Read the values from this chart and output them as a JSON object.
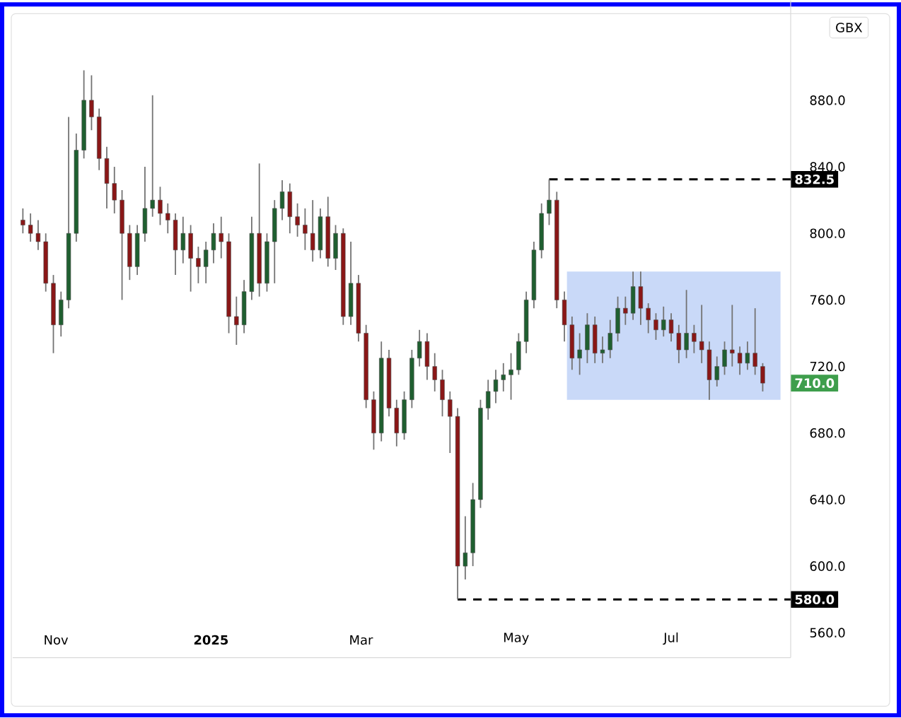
{
  "chart_data": {
    "type": "candlestick",
    "x": [
      "2024-10-19",
      "2024-10-22",
      "2024-10-25",
      "2024-10-28",
      "2024-10-31",
      "2024-11-03",
      "2024-11-06",
      "2024-11-09",
      "2024-11-12",
      "2024-11-15",
      "2024-11-18",
      "2024-11-21",
      "2024-11-24",
      "2024-11-27",
      "2024-11-30",
      "2024-12-03",
      "2024-12-06",
      "2024-12-09",
      "2024-12-12",
      "2024-12-15",
      "2024-12-18",
      "2024-12-21",
      "2024-12-24",
      "2024-12-27",
      "2024-12-30",
      "2025-01-02",
      "2025-01-05",
      "2025-01-08",
      "2025-01-11",
      "2025-01-14",
      "2025-01-17",
      "2025-01-20",
      "2025-01-23",
      "2025-01-26",
      "2025-01-29",
      "2025-02-01",
      "2025-02-04",
      "2025-02-07",
      "2025-02-10",
      "2025-02-13",
      "2025-02-16",
      "2025-02-19",
      "2025-02-22",
      "2025-02-25",
      "2025-02-28",
      "2025-03-03",
      "2025-03-06",
      "2025-03-09",
      "2025-03-12",
      "2025-03-15",
      "2025-03-18",
      "2025-03-21",
      "2025-03-24",
      "2025-03-27",
      "2025-03-30",
      "2025-04-02",
      "2025-04-05",
      "2025-04-08",
      "2025-04-11",
      "2025-04-14",
      "2025-04-17",
      "2025-04-20",
      "2025-04-23",
      "2025-04-26",
      "2025-04-29",
      "2025-05-02",
      "2025-05-05",
      "2025-05-08",
      "2025-05-11",
      "2025-05-14",
      "2025-05-17",
      "2025-05-20",
      "2025-05-23",
      "2025-05-26",
      "2025-05-29",
      "2025-06-01",
      "2025-06-04",
      "2025-06-07",
      "2025-06-10",
      "2025-06-13",
      "2025-06-16",
      "2025-06-19",
      "2025-06-22",
      "2025-06-25",
      "2025-06-28",
      "2025-07-01",
      "2025-07-04",
      "2025-07-07",
      "2025-07-10",
      "2025-07-13",
      "2025-07-16",
      "2025-07-19",
      "2025-07-22",
      "2025-07-25",
      "2025-07-28",
      "2025-07-31",
      "2025-08-03",
      "2025-08-06"
    ],
    "ohlc": [
      [
        808,
        815,
        800,
        805
      ],
      [
        805,
        812,
        795,
        800
      ],
      [
        800,
        808,
        790,
        795
      ],
      [
        795,
        800,
        765,
        770
      ],
      [
        770,
        775,
        728,
        745
      ],
      [
        745,
        765,
        738,
        760
      ],
      [
        760,
        870,
        755,
        800
      ],
      [
        800,
        860,
        795,
        850
      ],
      [
        850,
        898,
        845,
        880
      ],
      [
        880,
        895,
        862,
        870
      ],
      [
        870,
        875,
        838,
        845
      ],
      [
        845,
        852,
        815,
        830
      ],
      [
        830,
        840,
        812,
        820
      ],
      [
        820,
        826,
        760,
        800
      ],
      [
        800,
        805,
        772,
        780
      ],
      [
        780,
        805,
        775,
        800
      ],
      [
        800,
        840,
        795,
        815
      ],
      [
        815,
        883,
        810,
        820
      ],
      [
        820,
        828,
        805,
        812
      ],
      [
        812,
        818,
        800,
        808
      ],
      [
        808,
        812,
        775,
        790
      ],
      [
        790,
        810,
        782,
        800
      ],
      [
        800,
        805,
        765,
        785
      ],
      [
        785,
        792,
        770,
        780
      ],
      [
        780,
        795,
        770,
        790
      ],
      [
        790,
        806,
        782,
        800
      ],
      [
        800,
        810,
        785,
        795
      ],
      [
        795,
        800,
        740,
        750
      ],
      [
        750,
        762,
        733,
        745
      ],
      [
        745,
        772,
        740,
        765
      ],
      [
        765,
        810,
        760,
        800
      ],
      [
        800,
        842,
        762,
        770
      ],
      [
        770,
        800,
        765,
        795
      ],
      [
        795,
        820,
        770,
        815
      ],
      [
        815,
        832,
        808,
        825
      ],
      [
        825,
        830,
        800,
        810
      ],
      [
        810,
        818,
        798,
        805
      ],
      [
        805,
        815,
        790,
        800
      ],
      [
        800,
        820,
        783,
        790
      ],
      [
        790,
        815,
        785,
        810
      ],
      [
        810,
        822,
        780,
        785
      ],
      [
        785,
        805,
        778,
        800
      ],
      [
        800,
        803,
        745,
        750
      ],
      [
        750,
        795,
        745,
        770
      ],
      [
        770,
        775,
        735,
        740
      ],
      [
        740,
        745,
        695,
        700
      ],
      [
        700,
        705,
        670,
        680
      ],
      [
        680,
        735,
        675,
        725
      ],
      [
        725,
        730,
        690,
        695
      ],
      [
        695,
        700,
        672,
        680
      ],
      [
        680,
        705,
        676,
        700
      ],
      [
        700,
        730,
        695,
        725
      ],
      [
        725,
        742,
        720,
        735
      ],
      [
        735,
        740,
        712,
        720
      ],
      [
        720,
        728,
        705,
        712
      ],
      [
        712,
        718,
        690,
        700
      ],
      [
        700,
        705,
        668,
        690
      ],
      [
        690,
        695,
        580,
        600
      ],
      [
        600,
        630,
        592,
        608
      ],
      [
        608,
        650,
        600,
        640
      ],
      [
        640,
        700,
        635,
        695
      ],
      [
        695,
        712,
        688,
        705
      ],
      [
        705,
        718,
        698,
        712
      ],
      [
        712,
        722,
        705,
        715
      ],
      [
        715,
        728,
        700,
        718
      ],
      [
        718,
        740,
        715,
        735
      ],
      [
        735,
        765,
        728,
        760
      ],
      [
        760,
        795,
        755,
        790
      ],
      [
        790,
        818,
        785,
        812
      ],
      [
        812,
        832.5,
        805,
        820
      ],
      [
        820,
        825,
        755,
        760
      ],
      [
        760,
        765,
        735,
        745
      ],
      [
        745,
        750,
        718,
        725
      ],
      [
        725,
        740,
        715,
        730
      ],
      [
        730,
        752,
        722,
        745
      ],
      [
        745,
        750,
        722,
        728
      ],
      [
        728,
        738,
        722,
        730
      ],
      [
        730,
        748,
        725,
        740
      ],
      [
        740,
        762,
        735,
        755
      ],
      [
        755,
        762,
        745,
        752
      ],
      [
        752,
        777,
        748,
        768
      ],
      [
        768,
        777,
        745,
        755
      ],
      [
        755,
        758,
        740,
        748
      ],
      [
        748,
        752,
        736,
        742
      ],
      [
        742,
        756,
        738,
        748
      ],
      [
        748,
        752,
        735,
        740
      ],
      [
        740,
        745,
        722,
        730
      ],
      [
        730,
        766,
        725,
        740
      ],
      [
        740,
        745,
        728,
        735
      ],
      [
        735,
        757,
        722,
        730
      ],
      [
        730,
        735,
        700,
        712
      ],
      [
        712,
        726,
        708,
        720
      ],
      [
        720,
        735,
        715,
        730
      ],
      [
        730,
        757,
        720,
        728
      ],
      [
        728,
        732,
        715,
        722
      ],
      [
        722,
        735,
        718,
        728
      ],
      [
        728,
        755,
        715,
        720
      ],
      [
        720,
        722,
        705,
        710
      ]
    ],
    "colors": [
      "#8a1717",
      "#8a1717",
      "#8a1717",
      "#8a1717",
      "#8a1717",
      "#1f5f30",
      "#1f5f30",
      "#1f5f30",
      "#1f5f30",
      "#8a1717",
      "#8a1717",
      "#8a1717",
      "#8a1717",
      "#8a1717",
      "#8a1717",
      "#1f5f30",
      "#1f5f30",
      "#1f5f30",
      "#8a1717",
      "#8a1717",
      "#8a1717",
      "#1f5f30",
      "#8a1717",
      "#8a1717",
      "#1f5f30",
      "#1f5f30",
      "#8a1717",
      "#8a1717",
      "#8a1717",
      "#1f5f30",
      "#1f5f30",
      "#8a1717",
      "#1f5f30",
      "#1f5f30",
      "#1f5f30",
      "#8a1717",
      "#8a1717",
      "#8a1717",
      "#8a1717",
      "#1f5f30",
      "#8a1717",
      "#1f5f30",
      "#8a1717",
      "#1f5f30",
      "#8a1717",
      "#8a1717",
      "#8a1717",
      "#1f5f30",
      "#8a1717",
      "#8a1717",
      "#1f5f30",
      "#1f5f30",
      "#1f5f30",
      "#8a1717",
      "#8a1717",
      "#8a1717",
      "#8a1717",
      "#8a1717",
      "#1f5f30",
      "#1f5f30",
      "#1f5f30",
      "#1f5f30",
      "#1f5f30",
      "#1f5f30",
      "#1f5f30",
      "#1f5f30",
      "#1f5f30",
      "#1f5f30",
      "#1f5f30",
      "#1f5f30",
      "#8a1717",
      "#8a1717",
      "#8a1717",
      "#1f5f30",
      "#1f5f30",
      "#8a1717",
      "#1f5f30",
      "#1f5f30",
      "#1f5f30",
      "#8a1717",
      "#1f5f30",
      "#8a1717",
      "#8a1717",
      "#8a1717",
      "#1f5f30",
      "#8a1717",
      "#8a1717",
      "#1f5f30",
      "#8a1717",
      "#8a1717",
      "#8a1717",
      "#1f5f30",
      "#1f5f30",
      "#8a1717",
      "#8a1717",
      "#1f5f30",
      "#8a1717",
      "#8a1717"
    ],
    "xlim": [
      "2024-10-15",
      "2025-08-17"
    ],
    "xticks": [
      {
        "value": "2024-11-01",
        "label": "Nov"
      },
      {
        "value": "2025-01-01",
        "label": "**2025**"
      },
      {
        "value": "2025-03-01",
        "label": "Mar"
      },
      {
        "value": "2025-05-01",
        "label": "May"
      },
      {
        "value": "2025-07-01",
        "label": "Jul"
      }
    ],
    "ylim": [
      545,
      940
    ],
    "yticks": [
      {
        "value": 560,
        "label": "560.0"
      },
      {
        "value": 600,
        "label": "600.0"
      },
      {
        "value": 640,
        "label": "640.0"
      },
      {
        "value": 680,
        "label": "680.0"
      },
      {
        "value": 720,
        "label": "720.0"
      },
      {
        "value": 760,
        "label": "760.0"
      },
      {
        "value": 800,
        "label": "800.0"
      },
      {
        "value": 840,
        "label": "840.0"
      },
      {
        "value": 880,
        "label": "880.0"
      }
    ],
    "ref_lines": [
      {
        "axis": "y",
        "value": 832.5,
        "label": "832.5",
        "color": "#000000",
        "line_style": "dashed"
      },
      {
        "axis": "y",
        "value": 580,
        "label": "580.0",
        "color": "#000000",
        "line_style": "dashed"
      }
    ],
    "bands": [
      {
        "axis": "x",
        "from": "2025-05-21",
        "to": "2025-08-13",
        "color": "#c9d9f8"
      }
    ],
    "annotations": [
      "GBX",
      {
        "text": "710.0",
        "y": 710
      }
    ]
  }
}
